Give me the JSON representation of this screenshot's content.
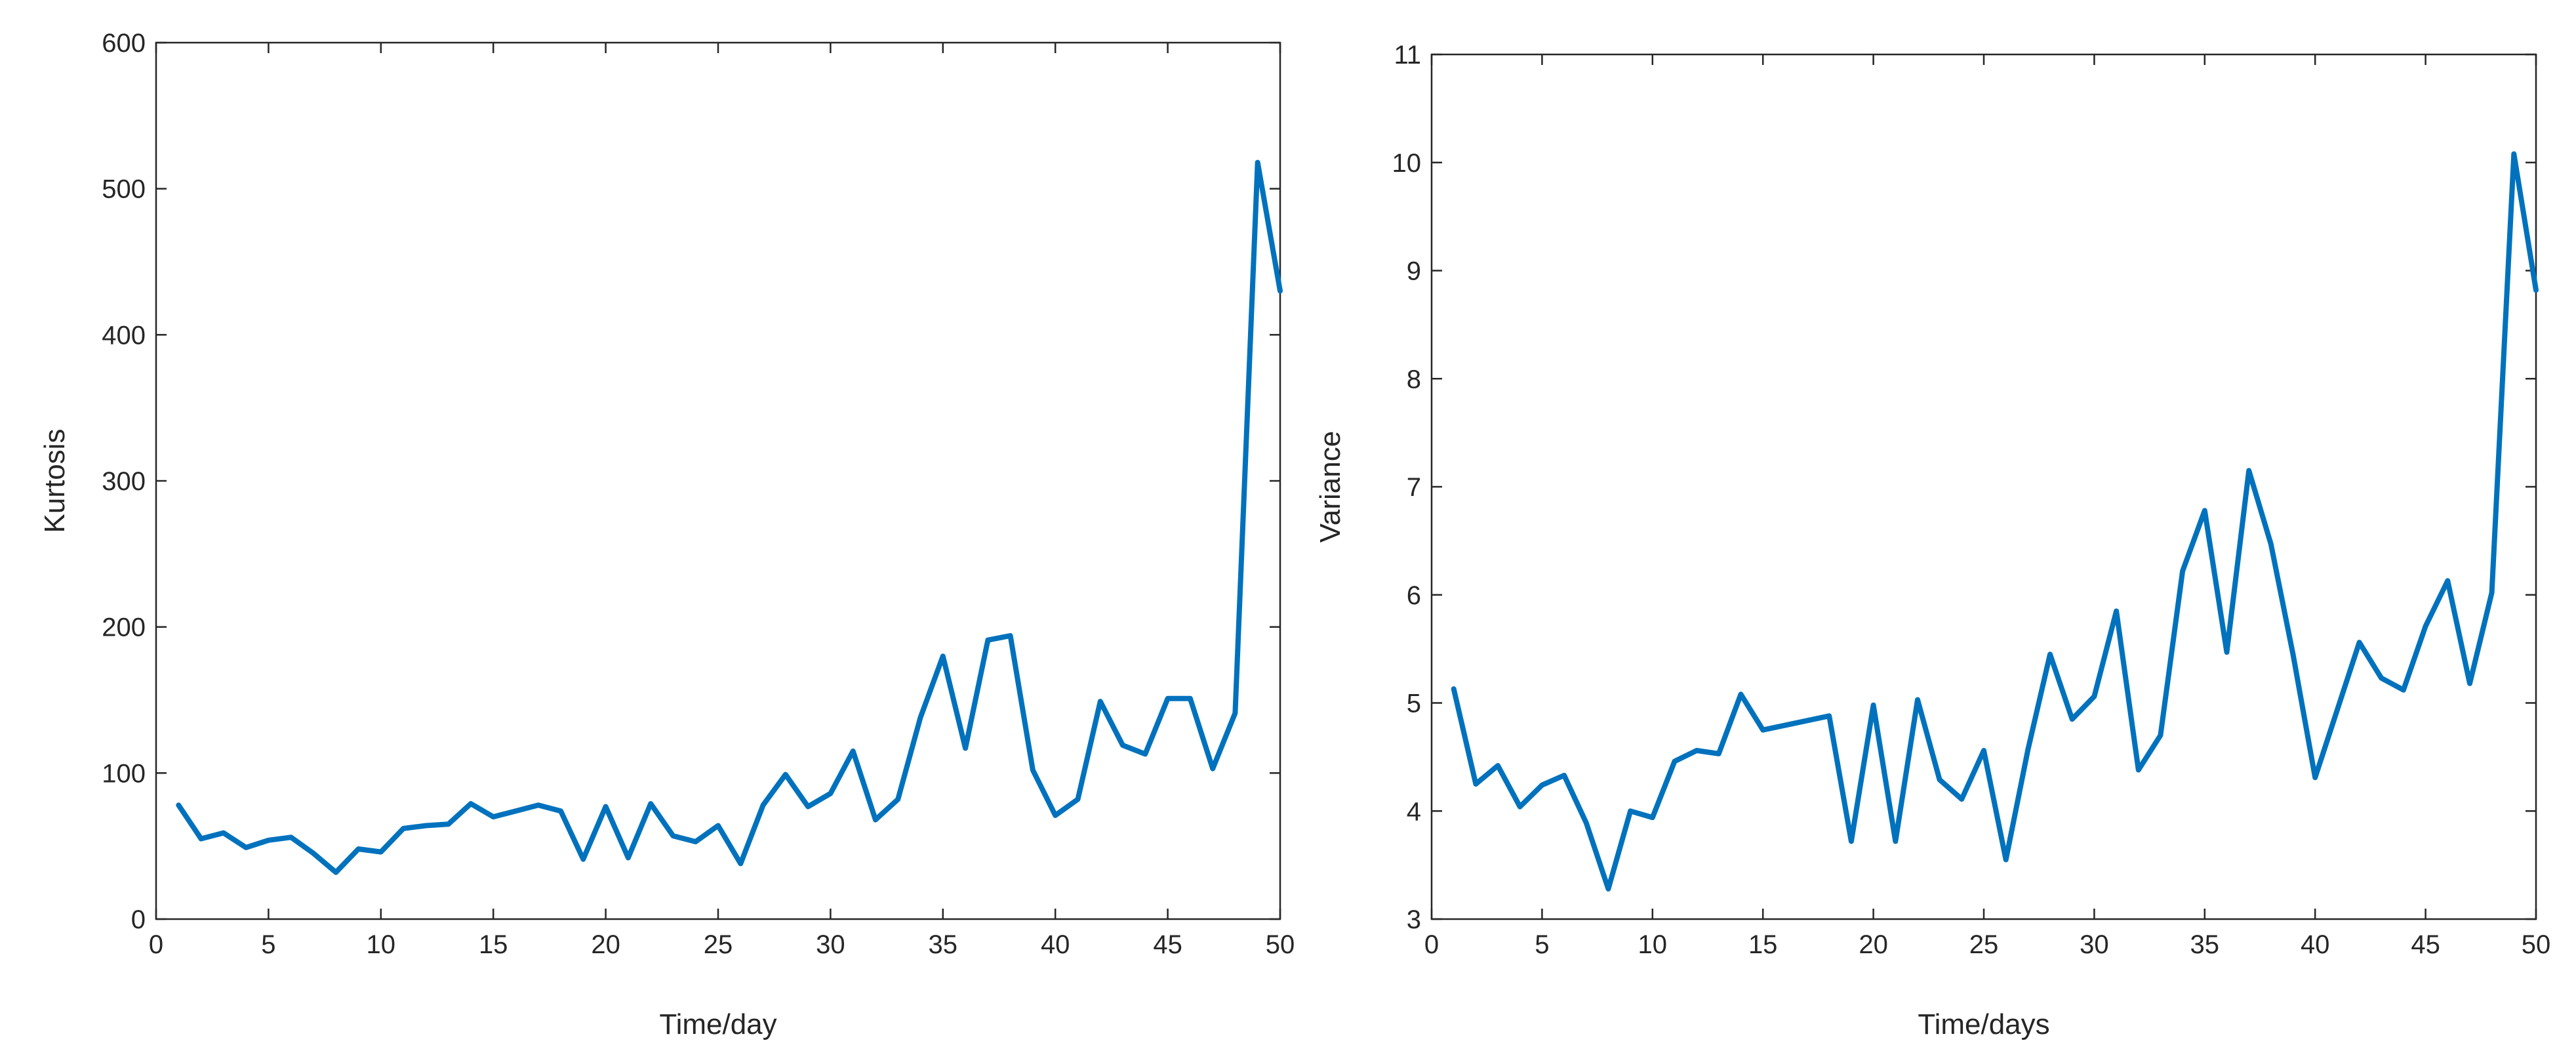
{
  "chart_data": [
    {
      "type": "line",
      "xlabel": "Time/day",
      "ylabel": "Kurtosis",
      "xlim": [
        0,
        50
      ],
      "ylim": [
        0,
        600
      ],
      "xticks": [
        0,
        5,
        10,
        15,
        20,
        25,
        30,
        35,
        40,
        45,
        50
      ],
      "yticks": [
        0,
        100,
        200,
        300,
        400,
        500,
        600
      ],
      "grid": false,
      "color": "#0072BD",
      "x": [
        1,
        2,
        3,
        4,
        5,
        6,
        7,
        8,
        9,
        10,
        11,
        12,
        13,
        14,
        15,
        16,
        17,
        18,
        19,
        20,
        21,
        22,
        23,
        24,
        25,
        26,
        27,
        28,
        29,
        30,
        31,
        32,
        33,
        34,
        35,
        36,
        37,
        38,
        39,
        40,
        41,
        42,
        43,
        44,
        45,
        46,
        47,
        48,
        49,
        50
      ],
      "y": [
        78,
        55,
        59,
        49,
        54,
        56,
        45,
        32,
        48,
        46,
        62,
        64,
        65,
        79,
        70,
        74,
        78,
        74,
        41,
        77,
        42,
        79,
        57,
        53,
        64,
        38,
        78,
        99,
        77,
        86,
        115,
        68,
        82,
        138,
        180,
        117,
        191,
        194,
        102,
        71,
        82,
        149,
        119,
        113,
        151,
        151,
        103,
        141,
        518,
        430
      ]
    },
    {
      "type": "line",
      "xlabel": "Time/days",
      "ylabel": "Variance",
      "xlim": [
        0,
        50
      ],
      "ylim": [
        3,
        11
      ],
      "xticks": [
        0,
        5,
        10,
        15,
        20,
        25,
        30,
        35,
        40,
        45,
        50
      ],
      "yticks": [
        3,
        4,
        5,
        6,
        7,
        8,
        9,
        10,
        11
      ],
      "grid": false,
      "color": "#0072BD",
      "x": [
        1,
        2,
        3,
        4,
        5,
        6,
        7,
        8,
        9,
        10,
        11,
        12,
        13,
        14,
        15,
        18,
        19,
        20,
        21,
        22,
        23,
        24,
        25,
        26,
        27,
        28,
        29,
        30,
        31,
        32,
        33,
        34,
        35,
        36,
        37,
        38,
        39,
        40,
        42,
        43,
        44,
        45,
        46,
        47,
        48,
        49,
        50
      ],
      "y": [
        5.13,
        4.25,
        4.42,
        4.04,
        4.24,
        4.33,
        3.89,
        3.28,
        4.0,
        3.94,
        4.46,
        4.56,
        4.53,
        5.08,
        4.75,
        4.88,
        3.72,
        4.98,
        3.72,
        5.03,
        4.29,
        4.11,
        4.56,
        3.55,
        4.57,
        5.45,
        4.85,
        5.06,
        5.85,
        4.38,
        4.7,
        6.22,
        6.78,
        5.47,
        7.15,
        6.47,
        5.45,
        4.31,
        5.56,
        5.23,
        5.12,
        5.71,
        6.13,
        5.18,
        6.02,
        10.08,
        8.82
      ]
    }
  ]
}
